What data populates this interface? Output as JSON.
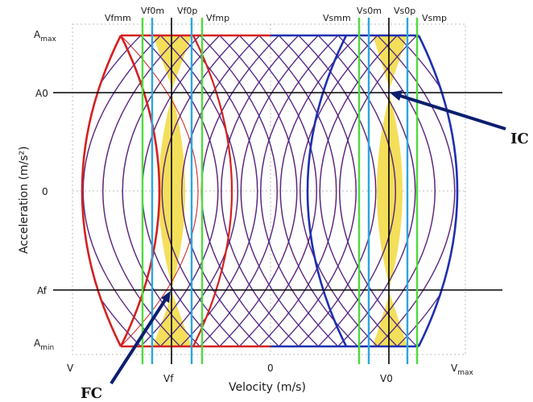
{
  "axes": {
    "xlabel": "Velocity (m/s)",
    "ylabel": "Acceleration (m/s²)",
    "x_ticks": {
      "v_min": "V",
      "vf": "Vf",
      "zero": "0",
      "v0": "V0",
      "v_max_base": "V",
      "v_max_sub": "max"
    },
    "y_ticks": {
      "a_max_base": "A",
      "a_max_sub": "max",
      "a0": "A0",
      "zero": "0",
      "af": "Af",
      "a_min_base": "A",
      "a_min_sub": "min"
    }
  },
  "velocity_lines": {
    "vfmm": "Vfmm",
    "vf0m": "Vf0m",
    "vf0p": "Vf0p",
    "vfmp": "Vfmp",
    "vsmm": "Vsmm",
    "vs0m": "Vs0m",
    "vs0p": "Vs0p",
    "vsmp": "Vsmp"
  },
  "callouts": {
    "ic": "IC",
    "fc": "FC"
  },
  "colors": {
    "red_family": "#d42020",
    "blue_family": "#1f2fb0",
    "green_line": "#4ddc3a",
    "cyan_line": "#2aa6e0",
    "highlight": "#f3df5a",
    "arrow": "#0c1e6e"
  }
}
